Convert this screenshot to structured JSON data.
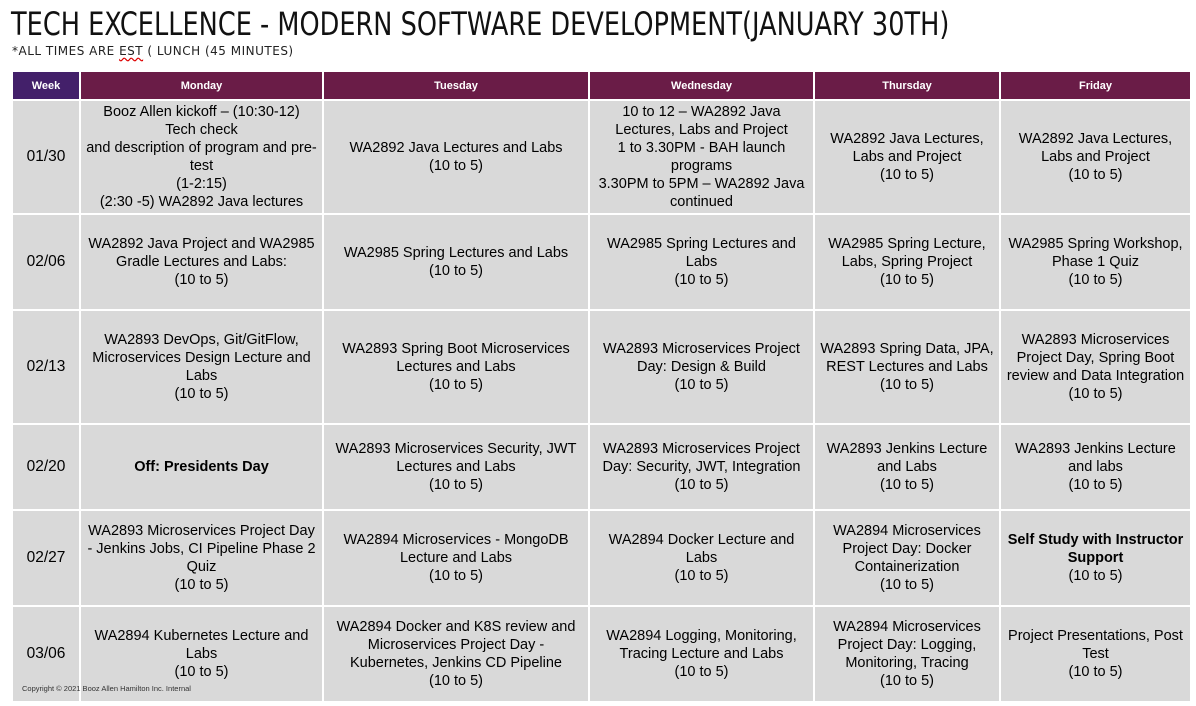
{
  "title": "TECH EXCELLENCE - MODERN SOFTWARE DEVELOPMENT(JANUARY 30TH)",
  "subtitle": {
    "prefix": "*ALL TIMES ARE ",
    "est": "EST",
    "suffix": " ( LUNCH (45 MINUTES)"
  },
  "headers": [
    "Week",
    "Monday",
    "Tuesday",
    "Wednesday",
    "Thursday",
    "Friday"
  ],
  "rows": [
    {
      "week": "01/30",
      "cells": [
        "Booz Allen kickoff – (10:30-12)\nTech check\nand description of program and pre-test\n(1-2:15)\n(2:30 -5) WA2892 Java lectures",
        "WA2892 Java Lectures and Labs\n(10 to 5)",
        "10 to 12 – WA2892 Java Lectures, Labs and Project\n1 to 3.30PM - BAH launch programs\n3.30PM to 5PM – WA2892 Java continued",
        "WA2892 Java Lectures, Labs and Project\n(10 to 5)",
        "WA2892 Java Lectures, Labs and Project\n(10 to 5)"
      ]
    },
    {
      "week": "02/06",
      "cells": [
        "WA2892 Java Project and WA2985 Gradle Lectures and Labs:\n(10 to 5)",
        "WA2985 Spring Lectures and Labs\n(10 to 5)",
        "WA2985 Spring Lectures and Labs\n(10 to 5)",
        "WA2985 Spring Lecture, Labs, Spring Project\n(10 to 5)",
        "WA2985 Spring Workshop, Phase 1 Quiz\n(10 to 5)"
      ]
    },
    {
      "week": "02/13",
      "cells": [
        "WA2893 DevOps, Git/GitFlow, Microservices Design Lecture and Labs\n(10 to 5)",
        "WA2893 Spring Boot Microservices Lectures and Labs\n(10 to 5)",
        "WA2893 Microservices Project Day: Design & Build\n(10 to 5)",
        "WA2893 Spring Data, JPA, REST Lectures and Labs\n(10 to 5)",
        "WA2893 Microservices Project  Day, Spring Boot review and Data Integration\n(10 to 5)"
      ]
    },
    {
      "week": "02/20",
      "cells": [
        "Off: Presidents Day",
        "WA2893 Microservices Security, JWT Lectures and Labs\n(10 to 5)",
        "WA2893 Microservices Project Day: Security, JWT, Integration\n(10 to 5)",
        "WA2893 Jenkins Lecture and Labs\n(10 to 5)",
        "WA2893 Jenkins Lecture and labs\n(10 to 5)"
      ]
    },
    {
      "week": "02/27",
      "cells": [
        "WA2893 Microservices Project Day - Jenkins Jobs, CI Pipeline Phase 2 Quiz\n(10 to 5)",
        "WA2894 Microservices - MongoDB Lecture and Labs\n(10 to 5)",
        "WA2894 Docker Lecture and Labs\n(10 to 5)",
        "WA2894 Microservices Project Day:  Docker Containerization\n(10 to 5)",
        "Self Study with Instructor Support"
      ],
      "friday_extra": "(10 to 5)"
    },
    {
      "week": "03/06",
      "cells": [
        "WA2894 Kubernetes Lecture and Labs\n(10 to 5)",
        "WA2894 Docker and K8S review and Microservices Project  Day - Kubernetes, Jenkins CD Pipeline\n(10 to 5)",
        "WA2894 Logging, Monitoring, Tracing Lecture and Labs\n(10 to 5)",
        "WA2894 Microservices Project Day: Logging, Monitoring, Tracing\n(10 to 5)",
        "Project Presentations, Post Test\n(10 to 5)"
      ]
    }
  ],
  "copyright": "Copyright © 2021 Booz Allen Hamilton Inc. Internal",
  "colors": {
    "header_week": "#43206a",
    "header_day": "#6a1c47",
    "cell_bg": "#d9d9d9"
  }
}
